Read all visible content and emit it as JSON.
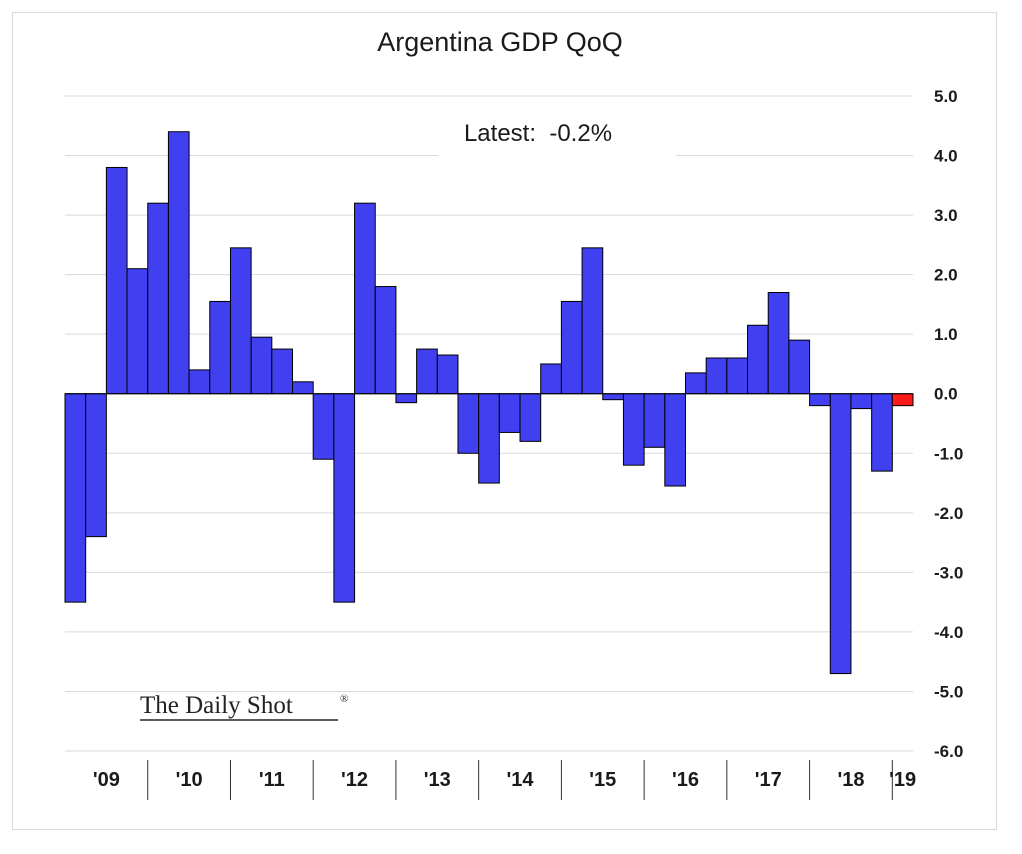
{
  "chart_data": {
    "type": "bar",
    "title": "Argentina GDP QoQ",
    "annotation": "Latest:  -0.2%",
    "branding": "The Daily Shot",
    "branding_mark": "®",
    "ylim": [
      -6.0,
      5.0
    ],
    "yticks": [
      5.0,
      4.0,
      3.0,
      2.0,
      1.0,
      0.0,
      -1.0,
      -2.0,
      -3.0,
      -4.0,
      -5.0,
      -6.0
    ],
    "ytick_labels": [
      "5.0",
      "4.0",
      "3.0",
      "2.0",
      "1.0",
      "0.0",
      "-1.0",
      "-2.0",
      "-3.0",
      "-4.0",
      "-5.0",
      "-6.0"
    ],
    "year_labels": [
      "'09",
      "'10",
      "'11",
      "'12",
      "'13",
      "'14",
      "'15",
      "'16",
      "'17",
      "'18",
      "'19"
    ],
    "grid": true,
    "y_axis_side": "right",
    "colors": {
      "bar": "#4040f0",
      "latest": "#ff1a1a",
      "outline": "#000000",
      "grid": "#d9d9d9"
    },
    "values": [
      -3.5,
      -2.4,
      3.8,
      2.1,
      3.2,
      4.4,
      0.4,
      1.55,
      2.45,
      0.95,
      0.75,
      0.2,
      -1.1,
      -3.5,
      3.2,
      1.8,
      -0.15,
      0.75,
      0.65,
      -1.0,
      -1.5,
      -0.65,
      -0.8,
      0.5,
      1.55,
      2.45,
      -0.1,
      -1.2,
      -0.9,
      -1.55,
      0.35,
      0.6,
      0.6,
      1.15,
      1.7,
      0.9,
      -0.2,
      -4.7,
      -0.25,
      -1.3,
      -0.2
    ]
  }
}
